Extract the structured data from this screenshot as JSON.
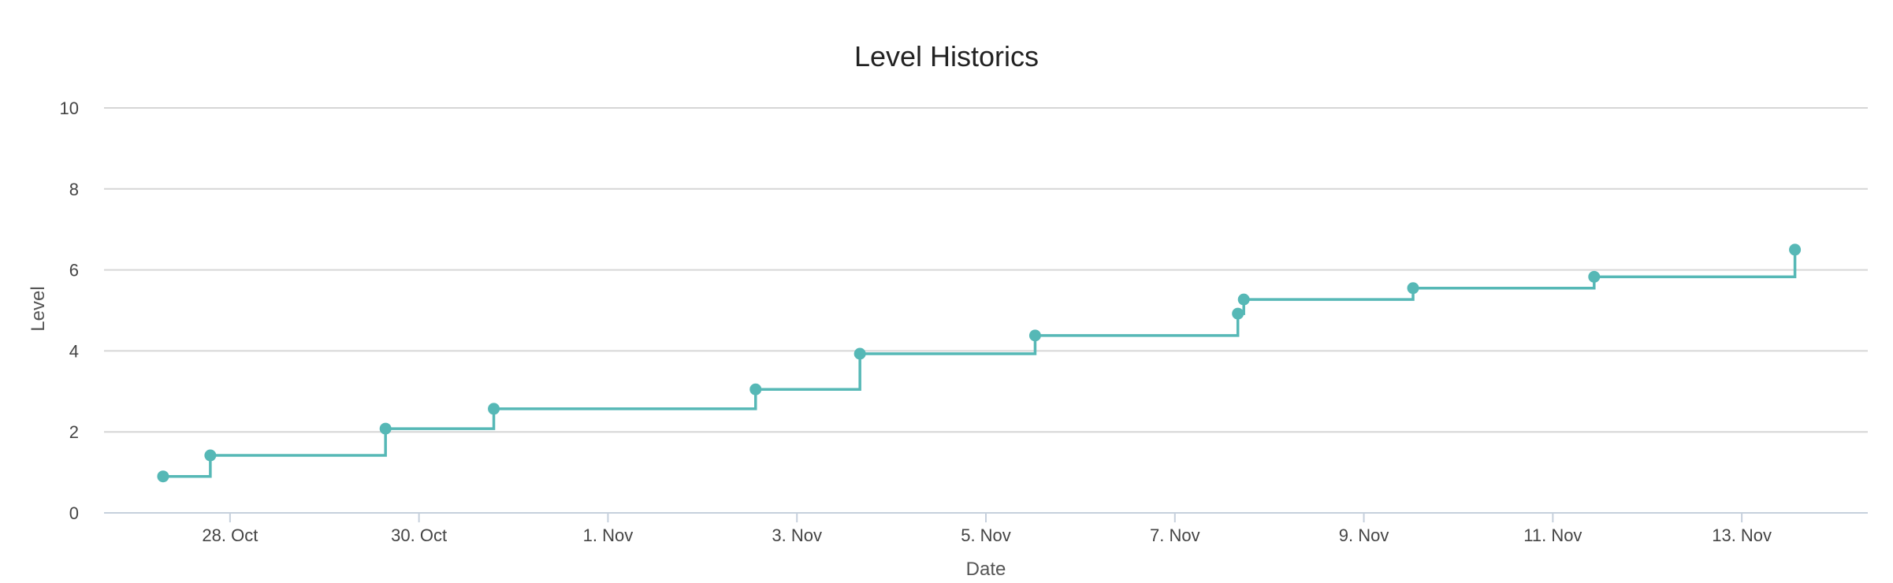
{
  "chart_data": {
    "type": "line",
    "step": true,
    "title": "Level Historics",
    "xlabel": "Date",
    "ylabel": "Level",
    "ylim": [
      0,
      10
    ],
    "yticks": [
      0,
      2,
      4,
      6,
      8,
      10
    ],
    "xlim": [
      "2019-10-26 16:00",
      "2019-11-14 08:00"
    ],
    "xticks": [
      {
        "date": "2019-10-28",
        "label": "28. Oct"
      },
      {
        "date": "2019-10-30",
        "label": "30. Oct"
      },
      {
        "date": "2019-11-01",
        "label": "1. Nov"
      },
      {
        "date": "2019-11-03",
        "label": "3. Nov"
      },
      {
        "date": "2019-11-05",
        "label": "5. Nov"
      },
      {
        "date": "2019-11-07",
        "label": "7. Nov"
      },
      {
        "date": "2019-11-09",
        "label": "9. Nov"
      },
      {
        "date": "2019-11-11",
        "label": "11. Nov"
      },
      {
        "date": "2019-11-13",
        "label": "13. Nov"
      }
    ],
    "grid": true,
    "color": "#56b8b6",
    "series": [
      {
        "points": [
          {
            "x": "2019-10-27 07:00",
            "y": 0.9
          },
          {
            "x": "2019-10-27 19:00",
            "y": 1.42
          },
          {
            "x": "2019-10-29 15:30",
            "y": 2.08
          },
          {
            "x": "2019-10-30 19:00",
            "y": 2.57
          },
          {
            "x": "2019-11-02 13:30",
            "y": 3.05
          },
          {
            "x": "2019-11-03 16:00",
            "y": 3.93
          },
          {
            "x": "2019-11-05 12:30",
            "y": 4.38
          },
          {
            "x": "2019-11-07 16:00",
            "y": 4.92
          },
          {
            "x": "2019-11-07 17:30",
            "y": 5.27
          },
          {
            "x": "2019-11-09 12:30",
            "y": 5.55
          },
          {
            "x": "2019-11-11 10:30",
            "y": 5.83
          },
          {
            "x": "2019-11-13 13:30",
            "y": 6.5
          }
        ]
      }
    ]
  }
}
